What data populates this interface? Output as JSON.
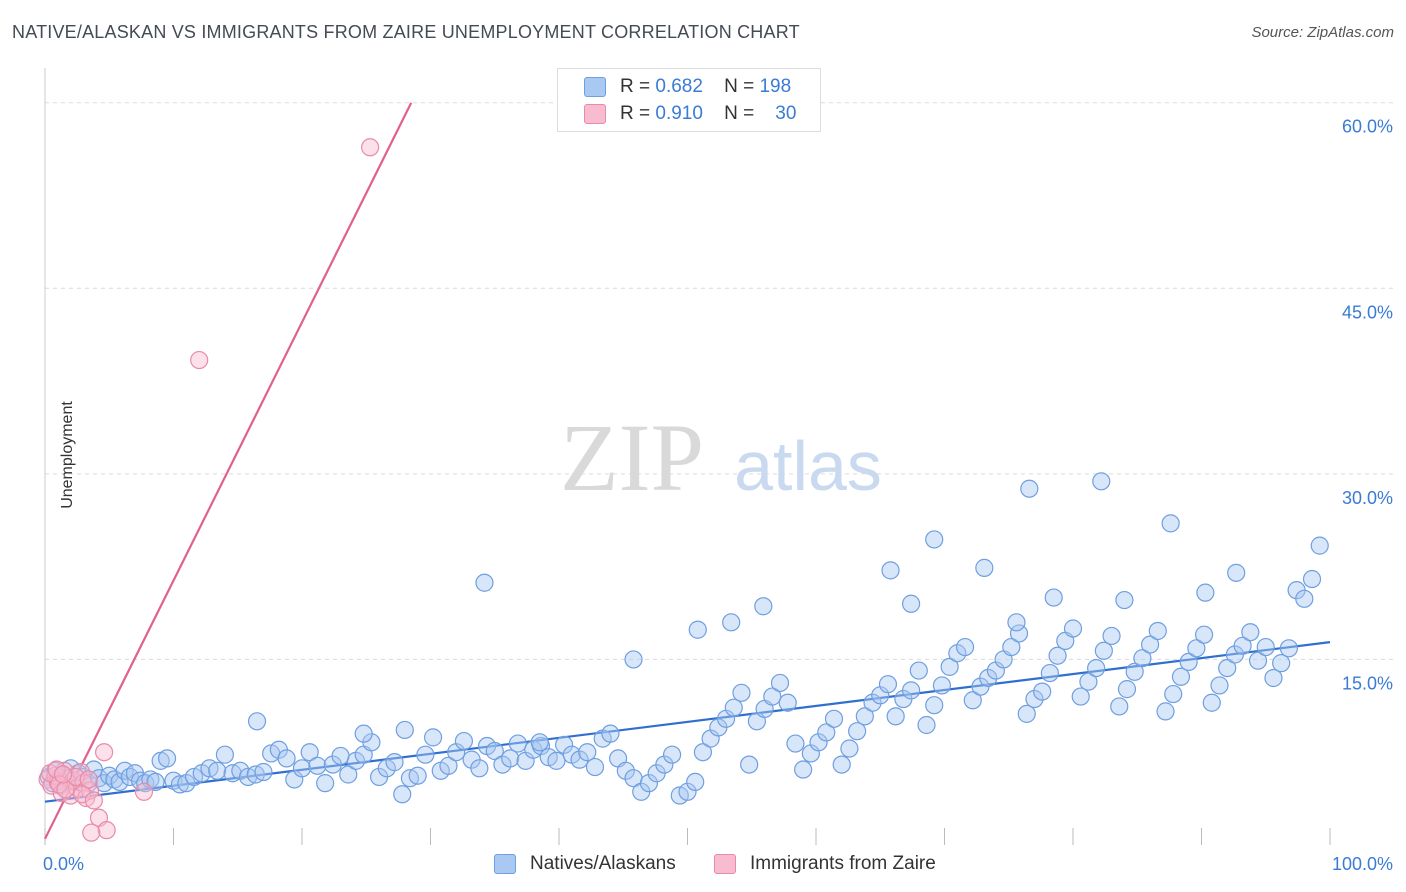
{
  "title": "NATIVE/ALASKAN VS IMMIGRANTS FROM ZAIRE UNEMPLOYMENT CORRELATION CHART",
  "source": "Source: ZipAtlas.com",
  "watermark": {
    "zip": "ZIP",
    "atlas": "atlas"
  },
  "legend": {
    "rows": [
      {
        "r_label": "R =",
        "r_value": "0.682",
        "n_label": "N =",
        "n_value": "198",
        "color": "#a9c8f2",
        "border": "#6f9fe0"
      },
      {
        "r_label": "R =",
        "r_value": "0.910",
        "n_label": "N =",
        "n_value": "30",
        "color": "#f8bcd0",
        "border": "#e88aa8"
      }
    ]
  },
  "bottom_legend": {
    "series1": "Natives/Alaskans",
    "series2": "Immigrants from Zaire"
  },
  "chart_data": {
    "type": "scatter",
    "title": "NATIVE/ALASKAN VS IMMIGRANTS FROM ZAIRE UNEMPLOYMENT CORRELATION CHART",
    "xlabel": "",
    "ylabel": "Unemployment",
    "xlim": [
      0,
      100
    ],
    "ylim": [
      0,
      62
    ],
    "x_tick_labels": [
      "0.0%",
      "100.0%"
    ],
    "y_ticks": [
      15,
      30,
      45,
      60
    ],
    "y_tick_labels": [
      "15.0%",
      "30.0%",
      "45.0%",
      "60.0%"
    ],
    "grid": true,
    "legend_position": "top-center",
    "series": [
      {
        "name": "Natives/Alaskans",
        "color": "#6f9fe0",
        "fill": "#a9c8f2",
        "trend_color": "#2f6fd0",
        "trend": {
          "x0": 0,
          "y0": 3.5,
          "x1": 100,
          "y1": 16.4
        },
        "points": [
          [
            0.3,
            5.5
          ],
          [
            0.6,
            5.0
          ],
          [
            0.8,
            6.0
          ],
          [
            1.0,
            5.2
          ],
          [
            1.2,
            4.8
          ],
          [
            1.5,
            5.6
          ],
          [
            1.8,
            5.3
          ],
          [
            2.0,
            6.2
          ],
          [
            2.3,
            5.1
          ],
          [
            2.6,
            5.8
          ],
          [
            3.0,
            5.5
          ],
          [
            3.4,
            5.0
          ],
          [
            3.8,
            6.1
          ],
          [
            4.2,
            5.4
          ],
          [
            4.6,
            5.0
          ],
          [
            5.0,
            5.6
          ],
          [
            5.4,
            5.3
          ],
          [
            5.8,
            5.1
          ],
          [
            6.2,
            6.0
          ],
          [
            6.6,
            5.5
          ],
          [
            7.0,
            5.8
          ],
          [
            7.4,
            5.2
          ],
          [
            7.8,
            5.0
          ],
          [
            8.2,
            5.3
          ],
          [
            8.6,
            5.1
          ],
          [
            9.0,
            6.8
          ],
          [
            9.5,
            7.0
          ],
          [
            10.0,
            5.2
          ],
          [
            10.5,
            4.9
          ],
          [
            11.0,
            5.0
          ],
          [
            11.6,
            5.5
          ],
          [
            12.2,
            5.8
          ],
          [
            12.8,
            6.2
          ],
          [
            13.4,
            6.0
          ],
          [
            14.0,
            7.3
          ],
          [
            14.6,
            5.8
          ],
          [
            15.2,
            6.0
          ],
          [
            15.8,
            5.5
          ],
          [
            16.4,
            5.7
          ],
          [
            17.0,
            5.9
          ],
          [
            17.6,
            7.4
          ],
          [
            18.2,
            7.7
          ],
          [
            18.8,
            7.0
          ],
          [
            19.4,
            5.3
          ],
          [
            20.0,
            6.2
          ],
          [
            20.6,
            7.5
          ],
          [
            21.2,
            6.4
          ],
          [
            21.8,
            5.0
          ],
          [
            22.4,
            6.5
          ],
          [
            23.0,
            7.2
          ],
          [
            23.6,
            5.7
          ],
          [
            24.2,
            6.8
          ],
          [
            24.8,
            7.3
          ],
          [
            25.4,
            8.3
          ],
          [
            26.0,
            5.5
          ],
          [
            26.6,
            6.2
          ],
          [
            27.2,
            6.7
          ],
          [
            27.8,
            4.1
          ],
          [
            28.4,
            5.4
          ],
          [
            29.0,
            5.6
          ],
          [
            29.6,
            7.3
          ],
          [
            30.2,
            8.7
          ],
          [
            30.8,
            6.0
          ],
          [
            31.4,
            6.4
          ],
          [
            32.0,
            7.5
          ],
          [
            32.6,
            8.4
          ],
          [
            33.2,
            6.9
          ],
          [
            33.8,
            6.2
          ],
          [
            34.4,
            8.0
          ],
          [
            35.0,
            7.6
          ],
          [
            35.6,
            6.5
          ],
          [
            36.2,
            7.0
          ],
          [
            36.8,
            8.2
          ],
          [
            37.4,
            6.8
          ],
          [
            38.0,
            7.7
          ],
          [
            38.6,
            8.0
          ],
          [
            39.2,
            7.1
          ],
          [
            39.8,
            6.8
          ],
          [
            40.4,
            8.1
          ],
          [
            41.0,
            7.3
          ],
          [
            41.6,
            6.9
          ],
          [
            42.2,
            7.5
          ],
          [
            42.8,
            6.3
          ],
          [
            43.4,
            8.6
          ],
          [
            44.0,
            9.0
          ],
          [
            44.6,
            7.0
          ],
          [
            45.2,
            6.0
          ],
          [
            45.8,
            5.4
          ],
          [
            46.4,
            4.3
          ],
          [
            47.0,
            5.0
          ],
          [
            47.6,
            5.8
          ],
          [
            48.2,
            6.5
          ],
          [
            48.8,
            7.3
          ],
          [
            49.4,
            4.0
          ],
          [
            50.0,
            4.3
          ],
          [
            50.6,
            5.1
          ],
          [
            51.2,
            7.5
          ],
          [
            51.8,
            8.6
          ],
          [
            52.4,
            9.5
          ],
          [
            53.0,
            10.2
          ],
          [
            53.6,
            11.1
          ],
          [
            54.2,
            12.3
          ],
          [
            54.8,
            6.5
          ],
          [
            55.4,
            10.0
          ],
          [
            56.0,
            11.0
          ],
          [
            56.6,
            12.0
          ],
          [
            57.2,
            13.1
          ],
          [
            57.8,
            11.5
          ],
          [
            58.4,
            8.2
          ],
          [
            59.0,
            6.1
          ],
          [
            59.6,
            7.4
          ],
          [
            60.2,
            8.3
          ],
          [
            60.8,
            9.1
          ],
          [
            61.4,
            10.2
          ],
          [
            62.0,
            6.5
          ],
          [
            62.6,
            7.8
          ],
          [
            63.2,
            9.2
          ],
          [
            63.8,
            10.4
          ],
          [
            64.4,
            11.5
          ],
          [
            65.0,
            12.1
          ],
          [
            65.6,
            13.0
          ],
          [
            66.2,
            10.4
          ],
          [
            66.8,
            11.8
          ],
          [
            67.4,
            12.5
          ],
          [
            68.0,
            14.1
          ],
          [
            68.6,
            9.7
          ],
          [
            69.2,
            11.3
          ],
          [
            69.8,
            12.9
          ],
          [
            70.4,
            14.4
          ],
          [
            71.0,
            15.5
          ],
          [
            71.6,
            16.0
          ],
          [
            72.2,
            11.7
          ],
          [
            72.8,
            12.8
          ],
          [
            73.4,
            13.5
          ],
          [
            74.0,
            14.1
          ],
          [
            74.6,
            15.0
          ],
          [
            75.2,
            16.0
          ],
          [
            75.8,
            17.1
          ],
          [
            76.4,
            10.6
          ],
          [
            77.0,
            11.8
          ],
          [
            77.6,
            12.4
          ],
          [
            78.2,
            13.9
          ],
          [
            78.8,
            15.3
          ],
          [
            79.4,
            16.5
          ],
          [
            80.0,
            17.5
          ],
          [
            80.6,
            12.0
          ],
          [
            81.2,
            13.2
          ],
          [
            81.8,
            14.3
          ],
          [
            82.4,
            15.7
          ],
          [
            83.0,
            16.9
          ],
          [
            83.6,
            11.2
          ],
          [
            84.2,
            12.6
          ],
          [
            84.8,
            14.0
          ],
          [
            85.4,
            15.1
          ],
          [
            86.0,
            16.2
          ],
          [
            86.6,
            17.3
          ],
          [
            87.2,
            10.8
          ],
          [
            87.8,
            12.2
          ],
          [
            88.4,
            13.6
          ],
          [
            89.0,
            14.8
          ],
          [
            89.6,
            15.9
          ],
          [
            90.2,
            17.0
          ],
          [
            90.8,
            11.5
          ],
          [
            91.4,
            12.9
          ],
          [
            92.0,
            14.3
          ],
          [
            92.6,
            15.4
          ],
          [
            93.2,
            16.1
          ],
          [
            93.8,
            17.2
          ],
          [
            94.4,
            14.9
          ],
          [
            95.0,
            16.0
          ],
          [
            95.6,
            13.5
          ],
          [
            96.2,
            14.7
          ],
          [
            96.8,
            15.9
          ],
          [
            97.4,
            20.6
          ],
          [
            98.0,
            19.9
          ],
          [
            98.6,
            21.5
          ],
          [
            99.2,
            24.2
          ],
          [
            69.2,
            24.7
          ],
          [
            73.1,
            22.4
          ],
          [
            76.6,
            28.8
          ],
          [
            82.2,
            29.4
          ],
          [
            87.6,
            26.0
          ],
          [
            78.5,
            20.0
          ],
          [
            65.8,
            22.2
          ],
          [
            67.4,
            19.5
          ],
          [
            34.2,
            21.2
          ],
          [
            24.8,
            9.0
          ],
          [
            28.0,
            9.3
          ],
          [
            38.5,
            8.3
          ],
          [
            45.8,
            15.0
          ],
          [
            50.8,
            17.4
          ],
          [
            53.4,
            18.0
          ],
          [
            55.9,
            19.3
          ],
          [
            75.6,
            18.0
          ],
          [
            84.0,
            19.8
          ],
          [
            90.3,
            20.4
          ],
          [
            92.7,
            22.0
          ],
          [
            16.5,
            10.0
          ]
        ]
      },
      {
        "name": "Immigrants from Zaire",
        "color": "#e88aa8",
        "fill": "#f8bcd0",
        "trend_color": "#e0608e",
        "trend": {
          "x0": 0,
          "y0": 0.5,
          "x1": 28.5,
          "y1": 60.0
        },
        "points": [
          [
            0.2,
            5.3
          ],
          [
            0.5,
            4.8
          ],
          [
            0.8,
            5.6
          ],
          [
            1.0,
            5.1
          ],
          [
            1.3,
            4.2
          ],
          [
            1.5,
            6.0
          ],
          [
            1.8,
            5.4
          ],
          [
            2.0,
            4.0
          ],
          [
            2.2,
            5.2
          ],
          [
            2.5,
            4.6
          ],
          [
            2.8,
            5.9
          ],
          [
            3.0,
            5.0
          ],
          [
            3.2,
            3.8
          ],
          [
            3.5,
            4.4
          ],
          [
            0.4,
            5.8
          ],
          [
            0.9,
            6.1
          ],
          [
            1.1,
            4.9
          ],
          [
            1.6,
            4.5
          ],
          [
            2.4,
            5.5
          ],
          [
            2.9,
            4.1
          ],
          [
            3.4,
            5.3
          ],
          [
            3.8,
            3.6
          ],
          [
            4.2,
            2.2
          ],
          [
            4.6,
            7.5
          ],
          [
            4.8,
            1.2
          ],
          [
            7.7,
            4.3
          ],
          [
            3.6,
            1.0
          ],
          [
            12.0,
            39.2
          ],
          [
            25.3,
            56.4
          ],
          [
            1.4,
            5.7
          ]
        ]
      }
    ]
  }
}
